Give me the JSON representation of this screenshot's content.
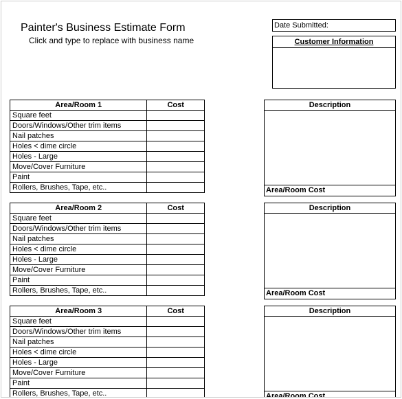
{
  "header": {
    "title": "Painter's Business Estimate Form",
    "subtitle": "Click and type to replace with business name",
    "date_label": "Date Submitted:",
    "customer_info_label": "Customer Information"
  },
  "columns": {
    "cost": "Cost",
    "description": "Description",
    "area_room_cost": "Area/Room Cost"
  },
  "sections": [
    {
      "area_label": "Area/Room 1",
      "items": [
        "Square feet",
        "Doors/Windows/Other trim items",
        "Nail patches",
        "Holes < dime circle",
        "Holes - Large",
        "Move/Cover Furniture",
        "Paint",
        "Rollers, Brushes, Tape, etc.."
      ]
    },
    {
      "area_label": "Area/Room 2",
      "items": [
        "Square feet",
        "Doors/Windows/Other trim items",
        "Nail patches",
        "Holes < dime circle",
        "Holes - Large",
        "Move/Cover Furniture",
        "Paint",
        "Rollers, Brushes, Tape, etc.."
      ]
    },
    {
      "area_label": "Area/Room 3",
      "items": [
        "Square feet",
        "Doors/Windows/Other trim items",
        "Nail patches",
        "Holes < dime circle",
        "Holes - Large",
        "Move/Cover Furniture",
        "Paint",
        "Rollers, Brushes, Tape, etc.."
      ]
    }
  ],
  "layout": {
    "section_tops": [
      143,
      293,
      443
    ]
  }
}
